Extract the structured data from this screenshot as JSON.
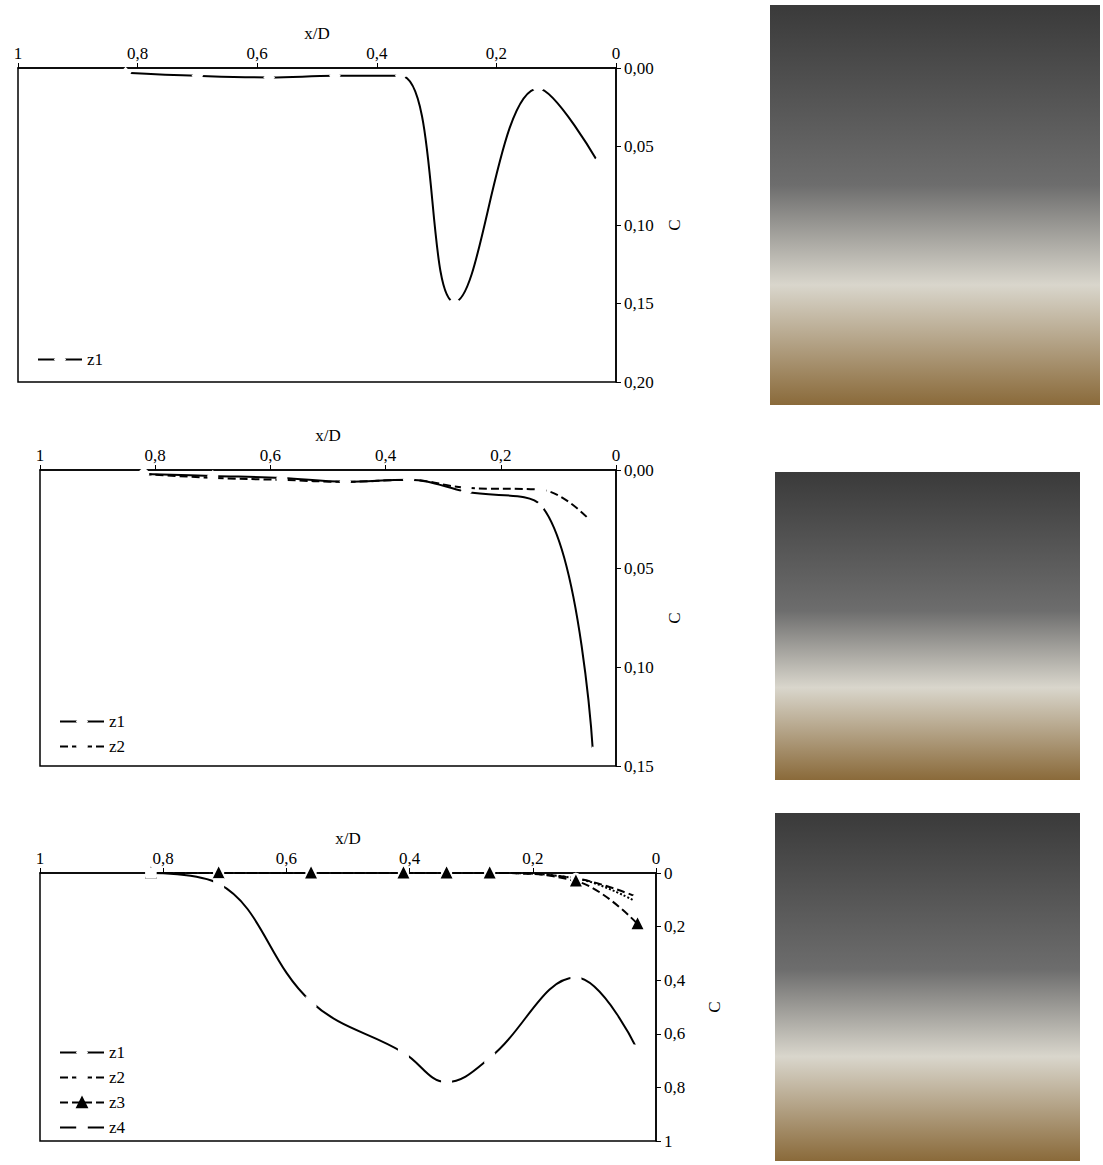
{
  "chart_data": [
    {
      "type": "line",
      "x_label": "x/D",
      "y_label": "C",
      "xlim": [
        1,
        0
      ],
      "xticks": [
        1,
        {
          "value": 0.8,
          "label": "0,8"
        },
        {
          "value": 0.6,
          "label": "0,6"
        },
        {
          "value": 0.4,
          "label": "0,4"
        },
        {
          "value": 0.2,
          "label": "0,2"
        },
        0
      ],
      "ylim": [
        0.2,
        0
      ],
      "yticks": [
        {
          "value": 0,
          "label": "0,00"
        },
        {
          "value": 0.05,
          "label": "0,05"
        },
        {
          "value": 0.1,
          "label": "0,10"
        },
        {
          "value": 0.15,
          "label": "0,15"
        },
        {
          "value": 0.2,
          "label": "0,20"
        }
      ],
      "legend": "lower left",
      "grid": false,
      "series": [
        {
          "name": "z1",
          "color": "#000000",
          "marker": "diamond",
          "line_style": "solid",
          "x": [
            0.82,
            0.7,
            0.58,
            0.47,
            0.36,
            0.27,
            0.13,
            0.03
          ],
          "values": [
            0.003,
            0.005,
            0.006,
            0.005,
            0.005,
            0.149,
            0.013,
            0.06
          ]
        }
      ]
    },
    {
      "type": "line",
      "x_label": "x/D",
      "y_label": "C",
      "xlim": [
        1,
        0
      ],
      "xticks": [
        1,
        {
          "value": 0.8,
          "label": "0,8"
        },
        {
          "value": 0.6,
          "label": "0,6"
        },
        {
          "value": 0.4,
          "label": "0,4"
        },
        {
          "value": 0.2,
          "label": "0,2"
        },
        0
      ],
      "ylim": [
        0.15,
        0
      ],
      "yticks": [
        {
          "value": 0,
          "label": "0,00"
        },
        {
          "value": 0.05,
          "label": "0,05"
        },
        {
          "value": 0.1,
          "label": "0,10"
        },
        {
          "value": 0.15,
          "label": "0,15"
        }
      ],
      "legend": "lower left",
      "grid": false,
      "series": [
        {
          "name": "z1",
          "color": "#000000",
          "marker": "diamond",
          "line_style": "solid",
          "x": [
            0.82,
            0.7,
            0.58,
            0.47,
            0.36,
            0.26,
            0.13,
            0.04
          ],
          "values": [
            0.002,
            0.003,
            0.004,
            0.006,
            0.005,
            0.011,
            0.018,
            0.143
          ]
        },
        {
          "name": "z2",
          "color": "#000000",
          "marker": "circle",
          "line_style": "dashed",
          "x": [
            0.82,
            0.7,
            0.58,
            0.47,
            0.36,
            0.26,
            0.13,
            0.04
          ],
          "values": [
            0.002,
            0.004,
            0.005,
            0.006,
            0.005,
            0.009,
            0.01,
            0.027
          ]
        }
      ]
    },
    {
      "type": "line",
      "x_label": "x/D",
      "y_label": "C",
      "xlim": [
        1,
        0
      ],
      "xticks": [
        1,
        {
          "value": 0.8,
          "label": "0,8"
        },
        {
          "value": 0.6,
          "label": "0,6"
        },
        {
          "value": 0.4,
          "label": "0,4"
        },
        {
          "value": 0.2,
          "label": "0,2"
        },
        0
      ],
      "ylim": [
        1,
        0
      ],
      "yticks": [
        0,
        {
          "value": 0.2,
          "label": "0,2"
        },
        {
          "value": 0.4,
          "label": "0,4"
        },
        {
          "value": 0.6,
          "label": "0,6"
        },
        {
          "value": 0.8,
          "label": "0,8"
        },
        1
      ],
      "legend": "lower left",
      "grid": false,
      "series": [
        {
          "name": "z1",
          "color": "#000000",
          "marker": "diamond",
          "line_style": "dashed",
          "x": [
            0.82,
            0.71,
            0.56,
            0.41,
            0.34,
            0.27,
            0.13,
            0.03
          ],
          "values": [
            0,
            0,
            0,
            0,
            0,
            0,
            0.02,
            0.09
          ]
        },
        {
          "name": "z2",
          "color": "#000000",
          "marker": "circle",
          "line_style": "dotted",
          "x": [
            0.82,
            0.71,
            0.56,
            0.41,
            0.34,
            0.27,
            0.13,
            0.03
          ],
          "values": [
            0,
            0,
            0,
            0,
            0,
            0,
            0.02,
            0.11
          ]
        },
        {
          "name": "z3",
          "color": "#000000",
          "marker": "triangle",
          "line_style": "dashed",
          "x": [
            0.82,
            0.71,
            0.56,
            0.41,
            0.34,
            0.27,
            0.13,
            0.03
          ],
          "values": [
            0,
            0,
            0,
            0,
            0,
            0,
            0.03,
            0.19
          ]
        },
        {
          "name": "z4",
          "color": "#000000",
          "marker": "square",
          "line_style": "solid",
          "x": [
            0.82,
            0.71,
            0.56,
            0.41,
            0.34,
            0.27,
            0.13,
            0.03
          ],
          "values": [
            0,
            0.04,
            0.48,
            0.67,
            0.78,
            0.69,
            0.39,
            0.66
          ]
        }
      ]
    }
  ]
}
